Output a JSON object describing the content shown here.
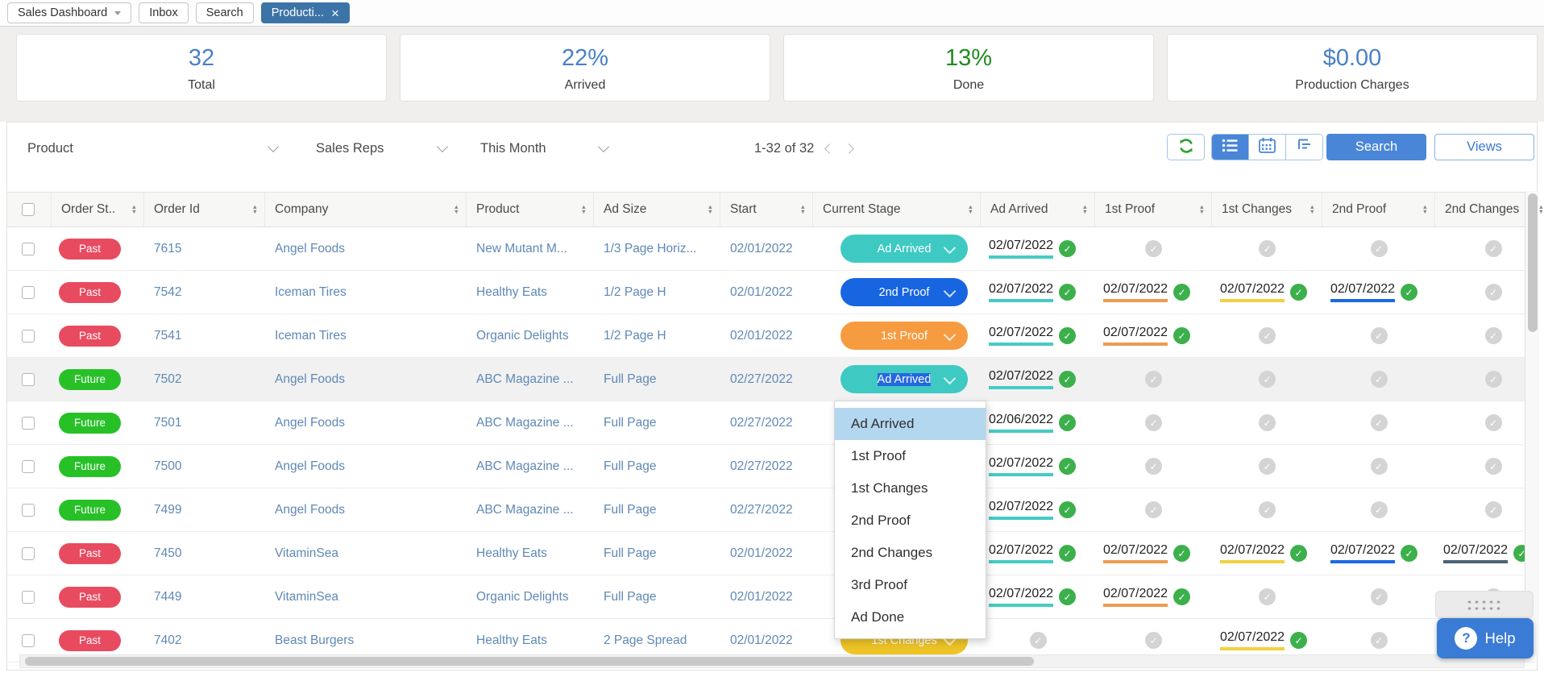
{
  "tabs": [
    {
      "label": "Sales Dashboard"
    },
    {
      "label": "Inbox"
    },
    {
      "label": "Search"
    },
    {
      "label": "Producti...",
      "active": true,
      "closable": true
    }
  ],
  "stats": [
    {
      "value": "32",
      "label": "Total",
      "color": "blue"
    },
    {
      "value": "22%",
      "label": "Arrived",
      "color": "blue"
    },
    {
      "value": "13%",
      "label": "Done",
      "color": "green"
    },
    {
      "value": "$0.00",
      "label": "Production Charges",
      "color": "blue"
    }
  ],
  "filters": {
    "product_label": "Product",
    "sales_reps_label": "Sales Reps",
    "period_label": "This Month"
  },
  "pagination": {
    "text": "1-32 of 32"
  },
  "toolbar": {
    "refresh_icon": "refresh-icon",
    "view_icons": [
      "list-view-icon",
      "calendar-view-icon",
      "tree-view-icon"
    ],
    "active_view": "list",
    "search_label": "Search",
    "views_label": "Views"
  },
  "table": {
    "columns": [
      "Order St..",
      "Order Id",
      "Company",
      "Product",
      "Ad Size",
      "Start",
      "Current Stage",
      "Ad Arrived",
      "1st Proof",
      "1st Changes",
      "2nd Proof",
      "2nd Changes"
    ],
    "rows": [
      {
        "status": "Past",
        "badge": "past",
        "order_id": "7615",
        "company": "Angel Foods",
        "product": "New Mutant M...",
        "ad_size": "1/3 Page Horiz...",
        "start": "02/01/2022",
        "stage": {
          "label": "Ad Arrived",
          "color": "teal",
          "selected": false
        },
        "dates": [
          "02/07/2022",
          null,
          null,
          null,
          null
        ],
        "highlighted": false
      },
      {
        "status": "Past",
        "badge": "past",
        "order_id": "7542",
        "company": "Iceman Tires",
        "product": "Healthy Eats",
        "ad_size": "1/2 Page H",
        "start": "02/01/2022",
        "stage": {
          "label": "2nd Proof",
          "color": "blue",
          "selected": false
        },
        "dates": [
          "02/07/2022",
          "02/07/2022",
          "02/07/2022",
          "02/07/2022",
          null
        ],
        "highlighted": false
      },
      {
        "status": "Past",
        "badge": "past",
        "order_id": "7541",
        "company": "Iceman Tires",
        "product": "Organic Delights",
        "ad_size": "1/2 Page H",
        "start": "02/01/2022",
        "stage": {
          "label": "1st Proof",
          "color": "orange",
          "selected": false
        },
        "dates": [
          "02/07/2022",
          "02/07/2022",
          null,
          null,
          null
        ],
        "highlighted": false
      },
      {
        "status": "Future",
        "badge": "future",
        "order_id": "7502",
        "company": "Angel Foods",
        "product": "ABC Magazine ...",
        "ad_size": "Full Page",
        "start": "02/27/2022",
        "stage": {
          "label": "Ad Arrived",
          "color": "teal",
          "selected": true
        },
        "dates": [
          "02/07/2022",
          null,
          null,
          null,
          null
        ],
        "highlighted": true
      },
      {
        "status": "Future",
        "badge": "future",
        "order_id": "7501",
        "company": "Angel Foods",
        "product": "ABC Magazine ...",
        "ad_size": "Full Page",
        "start": "02/27/2022",
        "stage": null,
        "dates": [
          "02/06/2022",
          null,
          null,
          null,
          null
        ],
        "highlighted": false
      },
      {
        "status": "Future",
        "badge": "future",
        "order_id": "7500",
        "company": "Angel Foods",
        "product": "ABC Magazine ...",
        "ad_size": "Full Page",
        "start": "02/27/2022",
        "stage": null,
        "dates": [
          "02/07/2022",
          null,
          null,
          null,
          null
        ],
        "highlighted": false
      },
      {
        "status": "Future",
        "badge": "future",
        "order_id": "7499",
        "company": "Angel Foods",
        "product": "ABC Magazine ...",
        "ad_size": "Full Page",
        "start": "02/27/2022",
        "stage": null,
        "dates": [
          "02/07/2022",
          null,
          null,
          null,
          null
        ],
        "highlighted": false
      },
      {
        "status": "Past",
        "badge": "past",
        "order_id": "7450",
        "company": "VitaminSea",
        "product": "Healthy Eats",
        "ad_size": "Full Page",
        "start": "02/01/2022",
        "stage": null,
        "dates": [
          "02/07/2022",
          "02/07/2022",
          "02/07/2022",
          "02/07/2022",
          "02/07/2022"
        ],
        "highlighted": false
      },
      {
        "status": "Past",
        "badge": "past",
        "order_id": "7449",
        "company": "VitaminSea",
        "product": "Organic Delights",
        "ad_size": "Full Page",
        "start": "02/01/2022",
        "stage": null,
        "dates": [
          "02/07/2022",
          "02/07/2022",
          null,
          null,
          null
        ],
        "highlighted": false
      },
      {
        "status": "Past",
        "badge": "past",
        "order_id": "7402",
        "company": "Beast Burgers",
        "product": "Healthy Eats",
        "ad_size": "2 Page Spread",
        "start": "02/01/2022",
        "stage": {
          "label": "1st Changes",
          "color": "yellow",
          "selected": false
        },
        "dates": [
          null,
          null,
          "02/07/2022",
          null,
          null
        ],
        "highlighted": false
      }
    ]
  },
  "dropdown": {
    "options": [
      "Ad Arrived",
      "1st Proof",
      "1st Changes",
      "2nd Proof",
      "2nd Changes",
      "3rd Proof",
      "Ad Done"
    ],
    "highlighted": "Ad Arrived"
  },
  "help": {
    "label": "Help"
  },
  "colors": {
    "stat": {
      "blue": "#4a80c8",
      "green": "#1f8c1f"
    },
    "badge": {
      "past": "#e84b60",
      "future": "#27c127"
    },
    "stage": {
      "teal": "#3ec9c3",
      "orange": "#f79b40",
      "yellow": "#eec427",
      "blue": "#1765e0"
    },
    "underline": [
      "#45cbc4",
      "#ec9b52",
      "#f2d040",
      "#1a6ae4",
      "#4a6378"
    ],
    "done_check": "#3cb04b",
    "pending_check": "#d4d4d4",
    "accent_blue": "#4a86d8",
    "tab_active": "#3d74a7",
    "selection": "#2468df",
    "dropdown_highlight": "#b4d7f0"
  }
}
